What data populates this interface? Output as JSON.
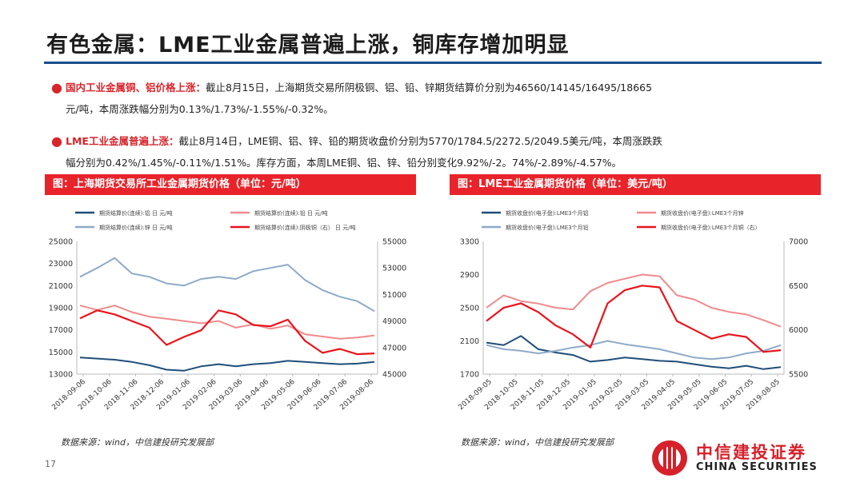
{
  "slide": {
    "title": "有色金属：LME工业金属普遍上涨，铜库存增加明显",
    "page_number": "17"
  },
  "bullets": [
    {
      "head": "国内工业金属铜、铝价格上涨：",
      "line1_rest": "截止8月15日，上海期货交易所阴极铜、铝、铅、锌期货结算价分别为46560/14145/16495/18665",
      "line2": "元/吨，本周涨跌幅分别为0.13%/1.73%/-1.55%/-0.32%。"
    },
    {
      "head": "LME工业金属普遍上涨：",
      "line1_rest": "截止8月14日，LME铜、铝、锌、铅的期货收盘价分别为5770/1784.5/2272.5/2049.5美元/吨，本周涨跌跌",
      "line2": "幅分别为0.42%/1.45%/-0.11%/1.51%。库存方面，本周LME铜、铝、锌、铅分别变化9.92%/-2。74%/-2.89%/-4.57%。"
    }
  ],
  "charts": {
    "left_header": "图：上海期货交易所工业金属期货价格（单位：元/吨）",
    "right_header": "图：LME工业金属期货价格（单位：美元/吨）",
    "left_source": "数据来源：wind，中信建投研究发展部",
    "right_source": "数据来源：wind，中信建投研究发展部"
  },
  "logo": {
    "cn": "中信建投证券",
    "en": "CHINA SECURITIES"
  },
  "colors": {
    "accent_red": "#e8242a",
    "title_rule": "#1a4e8c",
    "series_dark_blue": "#1f4e79",
    "series_light_red": "#f08a8c",
    "series_light_blue": "#8eaac8",
    "series_red": "#e8141c"
  },
  "chart_data": [
    {
      "type": "line",
      "legend": [
        "期货结算价(连续):铝 日 元/吨",
        "期货结算价(连续):铅 日 元/吨",
        "期货结算价(连续):锌 日 元/吨",
        "期货结算价(连续):阴极铜（右） 日 元/吨"
      ],
      "x_ticks": [
        "2018-09-06",
        "2018-10-06",
        "2018-11-06",
        "2018-12-06",
        "2019-01-06",
        "2019-02-06",
        "2019-03-06",
        "2019-04-06",
        "2019-05-06",
        "2019-06-06",
        "2019-07-06",
        "2019-08-06"
      ],
      "y_left_ticks": [
        "13000",
        "15000",
        "17000",
        "19000",
        "21000",
        "23000",
        "25000"
      ],
      "y_right_ticks": [
        "45000",
        "47000",
        "49000",
        "51000",
        "53000",
        "55000"
      ],
      "ylim_left": [
        13000,
        25000
      ],
      "ylim_right": [
        45000,
        55000
      ],
      "series": [
        {
          "name": "期货结算价(连续):铝 日 元/吨",
          "axis": "left",
          "color": "#1f4e79",
          "values": [
            14500,
            14400,
            14300,
            14100,
            13800,
            13400,
            13300,
            13700,
            13900,
            13700,
            13900,
            14000,
            14200,
            14100,
            14000,
            13900,
            13950,
            14100
          ]
        },
        {
          "name": "期货结算价(连续):铅 日 元/吨",
          "axis": "left",
          "color": "#f08a8c",
          "values": [
            19200,
            18800,
            19200,
            18600,
            18200,
            18000,
            17800,
            17600,
            17800,
            17200,
            17500,
            17100,
            17400,
            16600,
            16400,
            16200,
            16300,
            16500
          ]
        },
        {
          "name": "期货结算价(连续):锌 日 元/吨",
          "axis": "left",
          "color": "#8eaac8",
          "values": [
            21800,
            22600,
            23500,
            22100,
            21800,
            21200,
            21000,
            21600,
            21800,
            21600,
            22300,
            22600,
            22900,
            21500,
            20600,
            20000,
            19600,
            18700
          ]
        },
        {
          "name": "期货结算价(连续):阴极铜（右） 日 元/吨",
          "axis": "right",
          "color": "#e8141c",
          "values": [
            49200,
            49800,
            49500,
            49000,
            48500,
            47200,
            47800,
            48300,
            49800,
            49500,
            48700,
            48600,
            49100,
            47500,
            46600,
            46900,
            46500,
            46560
          ]
        }
      ]
    },
    {
      "type": "line",
      "legend": [
        "期货收盘价(电子盘):LME3个月铝",
        "期货收盘价(电子盘):LME3个月锌",
        "期货收盘价(电子盘):LME3个月铅",
        "期货收盘价(电子盘):LME3个月铜（右）"
      ],
      "x_ticks": [
        "2018-09-05",
        "2018-10-05",
        "2018-11-05",
        "2018-12-05",
        "2019-01-05",
        "2019-02-05",
        "2019-03-05",
        "2019-04-05",
        "2019-05-05",
        "2019-06-05",
        "2019-07-05",
        "2019-08-05"
      ],
      "y_left_ticks": [
        "1700",
        "2100",
        "2500",
        "2900",
        "3300"
      ],
      "y_right_ticks": [
        "5500",
        "6000",
        "6500",
        "7000"
      ],
      "ylim_left": [
        1700,
        3300
      ],
      "ylim_right": [
        5500,
        7000
      ],
      "series": [
        {
          "name": "期货收盘价(电子盘):LME3个月铝",
          "axis": "left",
          "color": "#1f4e79",
          "values": [
            2080,
            2050,
            2160,
            2000,
            1960,
            1930,
            1850,
            1870,
            1900,
            1880,
            1860,
            1850,
            1820,
            1790,
            1770,
            1800,
            1760,
            1785
          ]
        },
        {
          "name": "期货收盘价(电子盘):LME3个月锌",
          "axis": "left",
          "color": "#f08a8c",
          "values": [
            2500,
            2650,
            2580,
            2550,
            2500,
            2480,
            2700,
            2800,
            2850,
            2900,
            2880,
            2650,
            2600,
            2500,
            2450,
            2420,
            2350,
            2272
          ]
        },
        {
          "name": "期货收盘价(电子盘):LME3个月铅",
          "axis": "left",
          "color": "#8eaac8",
          "values": [
            2050,
            2000,
            1980,
            1950,
            1980,
            2020,
            2050,
            2100,
            2060,
            2030,
            2000,
            1950,
            1900,
            1880,
            1900,
            1950,
            1980,
            2049
          ]
        },
        {
          "name": "期货收盘价(电子盘):LME3个月铜（右）",
          "axis": "right",
          "color": "#e8141c",
          "values": [
            6100,
            6250,
            6300,
            6200,
            6050,
            5950,
            5800,
            6300,
            6450,
            6500,
            6480,
            6100,
            6000,
            5900,
            5950,
            5920,
            5750,
            5770
          ]
        }
      ]
    }
  ]
}
